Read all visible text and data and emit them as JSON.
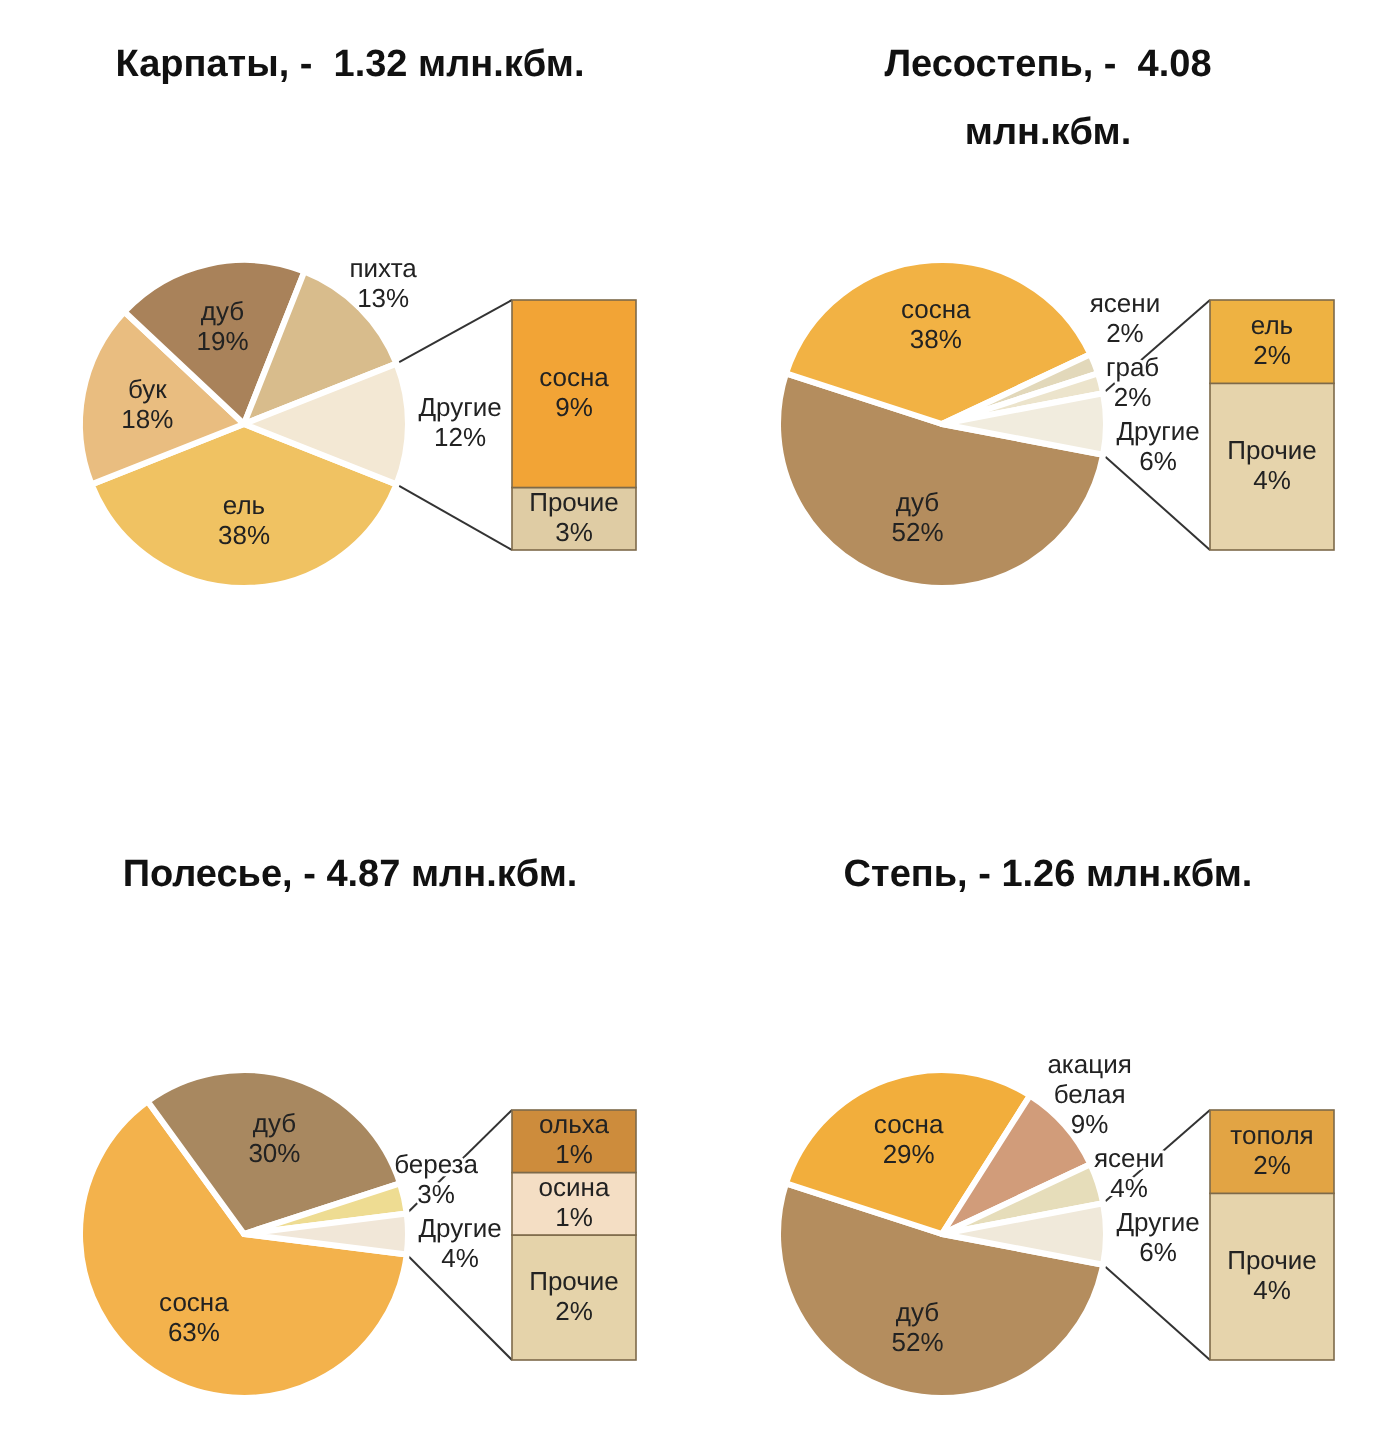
{
  "chart_data": [
    {
      "type": "pie",
      "title": "Карпаты, -  1.32 млн.кбм.",
      "categories": [
        "ель",
        "бук",
        "дуб",
        "пихта",
        "Другие"
      ],
      "values": [
        38,
        18,
        19,
        13,
        12
      ],
      "value_labels": [
        "38%",
        "18%",
        "19%",
        "13%",
        "12%"
      ],
      "colors": [
        "#f0c262",
        "#e9bd80",
        "#a9825a",
        "#d8bc8c",
        "#f3e8d4"
      ]
    },
    {
      "type": "bar",
      "stacked": true,
      "categories": [
        null
      ],
      "series": [
        {
          "name": "Прочие",
          "color": "#dfcca4",
          "values": [
            3
          ],
          "value_labels": [
            "3%"
          ]
        },
        {
          "name": "сосна",
          "color": "#f2a436",
          "values": [
            9
          ],
          "value_labels": [
            "9%"
          ]
        }
      ]
    },
    {
      "type": "pie",
      "title": "Лесостепь, -  4.08 млн.кбм.",
      "categories": [
        "дуб",
        "сосна",
        "ясени",
        "граб",
        "Другие"
      ],
      "values": [
        52,
        38,
        2,
        2,
        6
      ],
      "value_labels": [
        "52%",
        "38%",
        "2%",
        "2%",
        "6%"
      ],
      "colors": [
        "#b48d5e",
        "#f2b244",
        "#e2d8ba",
        "#ece4cc",
        "#f1ecde"
      ]
    },
    {
      "type": "bar",
      "stacked": true,
      "categories": [
        null
      ],
      "series": [
        {
          "name": "Прочие",
          "color": "#e6d4ac",
          "values": [
            4
          ],
          "value_labels": [
            "4%"
          ]
        },
        {
          "name": "ель",
          "color": "#eeb242",
          "values": [
            2
          ],
          "value_labels": [
            "2%"
          ]
        }
      ]
    },
    {
      "type": "pie",
      "title": "Полесье, - 4.87 млн.кбм.",
      "categories": [
        "сосна",
        "дуб",
        "береза",
        "Другие"
      ],
      "values": [
        63,
        30,
        3,
        4
      ],
      "value_labels": [
        "63%",
        "30%",
        "3%",
        "4%"
      ],
      "colors": [
        "#f3b24c",
        "#a88860",
        "#eedc92",
        "#f1e7d8"
      ]
    },
    {
      "type": "bar",
      "stacked": true,
      "categories": [
        null
      ],
      "series": [
        {
          "name": "Прочие",
          "color": "#e5d3aa",
          "values": [
            2
          ],
          "value_labels": [
            "2%"
          ]
        },
        {
          "name": "осина",
          "color": "#f4dec4",
          "values": [
            1
          ],
          "value_labels": [
            "1%"
          ]
        },
        {
          "name": "ольха",
          "color": "#cd8c3c",
          "values": [
            1
          ],
          "value_labels": [
            "1%"
          ]
        }
      ]
    },
    {
      "type": "pie",
      "title": "Степь, - 1.26 млн.кбм.",
      "categories": [
        "дуб",
        "сосна",
        "акация белая",
        "ясени",
        "Другие"
      ],
      "values": [
        52,
        29,
        9,
        4,
        6
      ],
      "value_labels": [
        "52%",
        "29%",
        "9%",
        "4%",
        "6%"
      ],
      "colors": [
        "#b48d5e",
        "#f2ae3c",
        "#d19c7a",
        "#e6ddba",
        "#f0e9da"
      ]
    },
    {
      "type": "bar",
      "stacked": true,
      "categories": [
        null
      ],
      "series": [
        {
          "name": "Прочие",
          "color": "#e6d4ac",
          "values": [
            4
          ],
          "value_labels": [
            "4%"
          ]
        },
        {
          "name": "тополя",
          "color": "#e2a444",
          "values": [
            2
          ],
          "value_labels": [
            "2%"
          ]
        }
      ]
    }
  ]
}
